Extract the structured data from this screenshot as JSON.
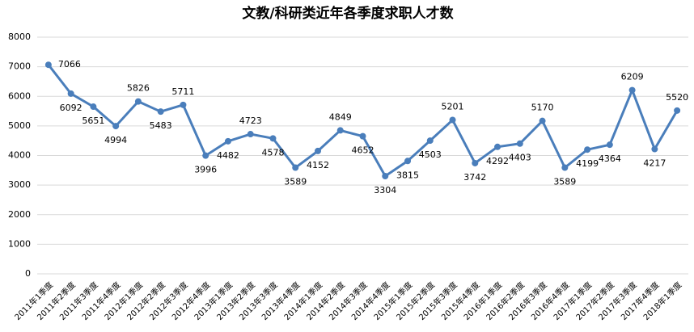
{
  "chart_data": {
    "type": "line",
    "title": "文教/科研类近年各季度求职人才数",
    "categories": [
      "2011年1季度",
      "2011年2季度",
      "2011年3季度",
      "2011年4季度",
      "2012年1季度",
      "2012年2季度",
      "2012年3季度",
      "2012年4季度",
      "2013年1季度",
      "2013年2季度",
      "2013年3季度",
      "2013年4季度",
      "2014年1季度",
      "2014年2季度",
      "2014年3季度",
      "2014年4季度",
      "2015年1季度",
      "2015年2季度",
      "2015年3季度",
      "2015年4季度",
      "2016年1季度",
      "2016年2季度",
      "2016年3季度",
      "2016年4季度",
      "2017年1季度",
      "2017年2季度",
      "2017年3季度",
      "2017年4季度",
      "2018年1季度"
    ],
    "values": [
      7066,
      6092,
      5651,
      4994,
      5826,
      5483,
      5711,
      3996,
      4482,
      4723,
      4578,
      3589,
      4152,
      4849,
      4652,
      3304,
      3815,
      4503,
      5201,
      3742,
      4292,
      4403,
      5170,
      3589,
      4199,
      4364,
      6209,
      4217,
      5520
    ],
    "color": "#4a7ebb",
    "ylim": [
      0,
      8000
    ],
    "yticks": [
      0,
      1000,
      2000,
      3000,
      4000,
      5000,
      6000,
      7000,
      8000
    ],
    "grid": true
  }
}
